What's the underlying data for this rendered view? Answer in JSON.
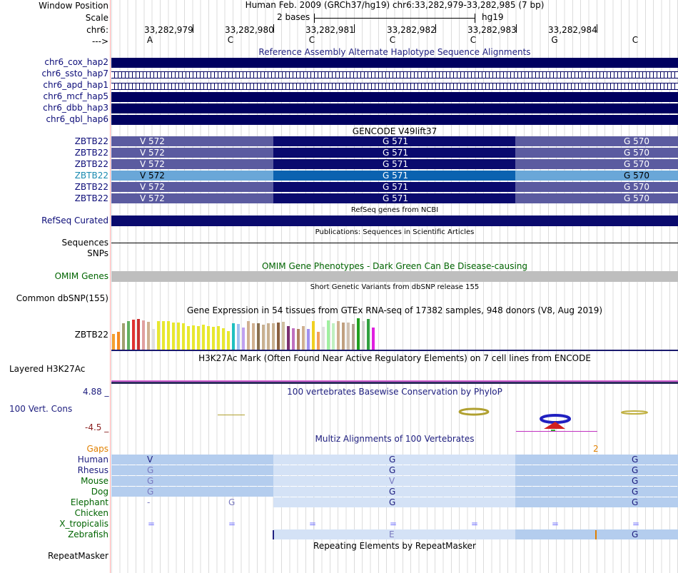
{
  "header": {
    "window_position_label": "Window Position",
    "scale_label": "Scale",
    "chr_label": "chr6:",
    "strand_label": "--->",
    "assembly_text": "Human Feb. 2009 (GRCh37/hg19)   chr6:33,282,979-33,282,985 (7 bp)",
    "scale_text": "2 bases",
    "scale_db": "hg19",
    "positions": [
      "33,282,979",
      "33,282,980",
      "33,282,981",
      "33,282,982",
      "33,282,983",
      "33,282,984"
    ],
    "bases": [
      "A",
      "C",
      "C",
      "C",
      "C",
      "G",
      "C"
    ]
  },
  "tracks": {
    "ref_alt_title": "Reference Assembly Alternate Haplotype Sequence Alignments",
    "haplotypes": [
      "chr6_cox_hap2",
      "chr6_ssto_hap7",
      "chr6_apd_hap1",
      "chr6_mcf_hap5",
      "chr6_dbb_hap3",
      "chr6_qbl_hap6"
    ],
    "gencode_title": "GENCODE V49lift37",
    "gencode_rows": [
      {
        "label": "ZBTB22",
        "aa": [
          "V 572",
          "G 571",
          "G 570"
        ]
      },
      {
        "label": "ZBTB22",
        "aa": [
          "V 572",
          "G 571",
          "G 570"
        ]
      },
      {
        "label": "ZBTB22",
        "aa": [
          "V 572",
          "G 571",
          "G 570"
        ]
      },
      {
        "label": "ZBTB22",
        "aa": [
          "V 572",
          "G 571",
          "G 570"
        ]
      },
      {
        "label": "ZBTB22",
        "aa": [
          "V 572",
          "G 571",
          "G 570"
        ]
      },
      {
        "label": "ZBTB22",
        "aa": [
          "V 572",
          "G 571",
          "G 570"
        ]
      }
    ],
    "refseq_title": "RefSeq genes from NCBI",
    "refseq_label": "RefSeq Curated",
    "pubs_title": "Publications: Sequences in Scientific Articles",
    "sequences_label": "Sequences",
    "snps_label": "SNPs",
    "omim_title": "OMIM Gene Phenotypes - Dark Green Can Be Disease-causing",
    "omim_label": "OMIM Genes",
    "dbsnp_title": "Short Genetic Variants from dbSNP release 155",
    "dbsnp_label": "Common dbSNP(155)",
    "gtex_title": "Gene Expression in 54 tissues from GTEx RNA-seq of 17382 samples, 948 donors (V8, Aug 2019)",
    "gtex_label": "ZBTB22",
    "h3k27_title": "H3K27Ac Mark (Often Found Near Active Regulatory Elements) on 7 cell lines from ENCODE",
    "h3k27_label": "Layered H3K27Ac",
    "cons_title": "100 vertebrates Basewise Conservation by PhyloP",
    "cons_label": "100 Vert. Cons",
    "cons_max": "4.88 _",
    "cons_min": "-4.5 _",
    "multiz_title": "Multiz Alignments of 100 Vertebrates",
    "gaps_label": "Gaps",
    "gaps_value": "2",
    "species": [
      {
        "name": "Human",
        "a": "V",
        "b": "G",
        "c": "G"
      },
      {
        "name": "Rhesus",
        "a": "G",
        "b": "G",
        "c": "G"
      },
      {
        "name": "Mouse",
        "a": "G",
        "b": "V",
        "c": "G"
      },
      {
        "name": "Dog",
        "a": "G",
        "b": "G",
        "c": "G"
      },
      {
        "name": "Elephant",
        "a": "-",
        "a2": "G",
        "b": "G",
        "c": "G"
      },
      {
        "name": "Chicken"
      },
      {
        "name": "X_tropicalis",
        "dash": "="
      },
      {
        "name": "Zebrafish",
        "b": "E",
        "c": "G"
      }
    ],
    "repeat_title": "Repeating Elements by RepeatMasker",
    "repeat_label": "RepeatMasker"
  },
  "colors": {
    "hap": "#000060",
    "gencode_light": "#5b5ba0",
    "gencode_dark": "#0a0a6e",
    "gencode_sel_light": "#6aa7d8",
    "gencode_sel_dark": "#0b62b0",
    "multiz_fill": "#b4cdee",
    "multiz_fill_light": "#d4e2f6"
  }
}
